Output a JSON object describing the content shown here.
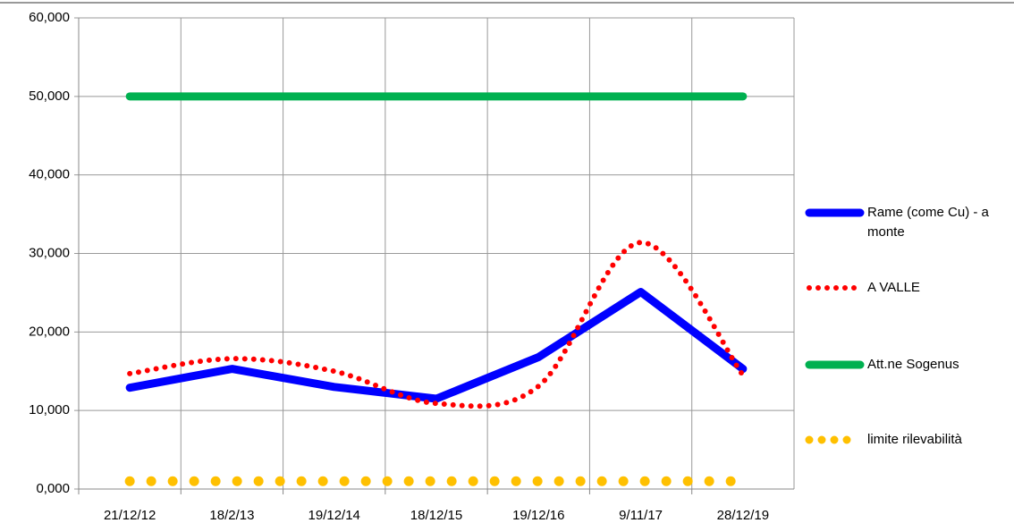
{
  "chart_data": {
    "type": "line",
    "categories": [
      "21/12/12",
      "18/2/13",
      "19/12/14",
      "18/12/15",
      "19/12/16",
      "9/11/17",
      "28/12/19"
    ],
    "series": [
      {
        "name": "Rame (come Cu) - a monte",
        "color": "#0000ff",
        "style": "solid",
        "values": [
          12900,
          15300,
          13000,
          11500,
          16800,
          25100,
          15300
        ]
      },
      {
        "name": "A VALLE",
        "color": "#ff0000",
        "style": "dotted",
        "smooth": true,
        "values": [
          14700,
          16600,
          15000,
          10900,
          13100,
          31400,
          14500
        ]
      },
      {
        "name": "Att.ne Sogenus",
        "color": "#00b050",
        "style": "solid",
        "values": [
          50000,
          50000,
          50000,
          50000,
          50000,
          50000,
          50000
        ]
      },
      {
        "name": "limite rilevabilità",
        "color": "#ffc000",
        "style": "dotted",
        "values": [
          1000,
          1000,
          1000,
          1000,
          1000,
          1000,
          1000
        ]
      }
    ],
    "ylim": [
      0,
      60000
    ],
    "yticks": [
      {
        "value": 0,
        "label": "0,000"
      },
      {
        "value": 10000,
        "label": "10,000"
      },
      {
        "value": 20000,
        "label": "20,000"
      },
      {
        "value": 30000,
        "label": "30,000"
      },
      {
        "value": 40000,
        "label": "40,000"
      },
      {
        "value": 50000,
        "label": "50,000"
      },
      {
        "value": 60000,
        "label": "60,000"
      }
    ],
    "grid": true,
    "legend": "right"
  }
}
